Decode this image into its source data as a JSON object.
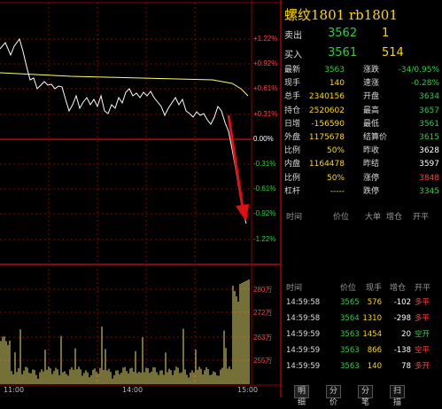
{
  "chart": {
    "pct_labels": [
      "+1.22%",
      "+0.92%",
      "+0.61%",
      "+0.31%",
      "0.00%",
      "-0.31%",
      "-0.61%",
      "-0.92%",
      "-1.22%"
    ],
    "vol_labels": [
      "280万",
      "272万",
      "263万",
      "255万"
    ],
    "time_labels": [
      "11:00",
      "14:00",
      "15:00"
    ],
    "colors": {
      "price": "#ffffff",
      "avg": "#ffff66",
      "volume": "#e8e070",
      "grid": "#8b0000",
      "arrow": "#e01010"
    }
  },
  "panel": {
    "title": "螺纹1801 rb1801",
    "sell": {
      "label": "卖出",
      "price": "3562",
      "vol": "1"
    },
    "buy": {
      "label": "买入",
      "price": "3561",
      "vol": "514"
    },
    "stats": [
      {
        "l1": "最新",
        "v1": "3563",
        "c1": "g",
        "l2": "涨跌",
        "v2": "-34/0.95%",
        "c2": "g"
      },
      {
        "l1": "现手",
        "v1": "140",
        "c1": "y",
        "l2": "速涨",
        "v2": "-0.28%",
        "c2": "g"
      },
      {
        "l1": "总手",
        "v1": "2340156",
        "c1": "y",
        "l2": "开盘",
        "v2": "3634",
        "c2": "g"
      },
      {
        "l1": "持仓",
        "v1": "2520602",
        "c1": "y",
        "l2": "最高",
        "v2": "3657",
        "c2": "g"
      },
      {
        "l1": "日增",
        "v1": "-156590",
        "c1": "y",
        "l2": "最低",
        "v2": "3561",
        "c2": "g"
      },
      {
        "l1": "外盘",
        "v1": "1175678",
        "c1": "y",
        "l2": "结算价",
        "v2": "3615",
        "c2": "g"
      },
      {
        "l1": "比例",
        "v1": "50%",
        "c1": "y",
        "l2": "昨收",
        "v2": "3628",
        "c2": "w"
      },
      {
        "l1": "内盘",
        "v1": "1164478",
        "c1": "y",
        "l2": "昨结",
        "v2": "3597",
        "c2": "w"
      },
      {
        "l1": "比例",
        "v1": "50%",
        "c1": "y",
        "l2": "涨停",
        "v2": "3848",
        "c2": "r"
      },
      {
        "l1": "杠杆",
        "v1": "-----",
        "c1": "y",
        "l2": "跌停",
        "v2": "3345",
        "c2": "g"
      }
    ],
    "header1": [
      "时间",
      "价位",
      "大单",
      "增仓",
      "开平"
    ],
    "header2": [
      "时间",
      "价位",
      "现手",
      "增仓",
      "开平"
    ],
    "ticks": [
      {
        "t": "14:59:58",
        "p": "3565",
        "v": "576",
        "d": "-102",
        "k": "多平",
        "kc": "r"
      },
      {
        "t": "14:59:58",
        "p": "3564",
        "v": "1310",
        "d": "-298",
        "k": "多平",
        "kc": "r"
      },
      {
        "t": "14:59:59",
        "p": "3563",
        "v": "1454",
        "d": "20",
        "k": "空开",
        "kc": "g"
      },
      {
        "t": "14:59:59",
        "p": "3563",
        "v": "866",
        "d": "-138",
        "k": "空平",
        "kc": "r"
      },
      {
        "t": "14:59:59",
        "p": "3563",
        "v": "140",
        "d": "78",
        "k": "多开",
        "kc": "r"
      }
    ],
    "tabs": [
      "明细",
      "分价",
      "分笔",
      "扫描"
    ]
  }
}
